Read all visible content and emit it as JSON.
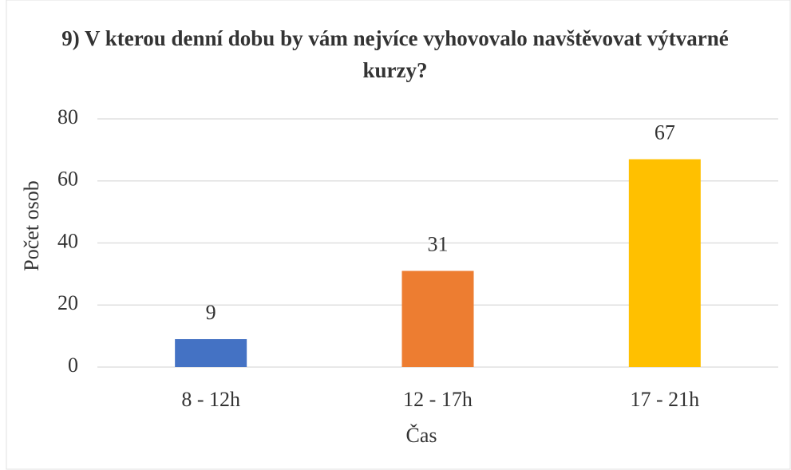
{
  "chart_data": {
    "type": "bar",
    "title": "9) V kterou denní dobu by vám nejvíce vyhovovalo navštěvovat výtvarné kurzy?",
    "categories": [
      "8 - 12h",
      "12 - 17h",
      "17 - 21h"
    ],
    "values": [
      9,
      31,
      67
    ],
    "colors": [
      "#4472c4",
      "#ed7d31",
      "#ffc000"
    ],
    "xlabel": "Čas",
    "ylabel": "Počet osob",
    "ylim": [
      0,
      80
    ],
    "yticks": [
      0,
      20,
      40,
      60,
      80
    ],
    "grid": true
  }
}
